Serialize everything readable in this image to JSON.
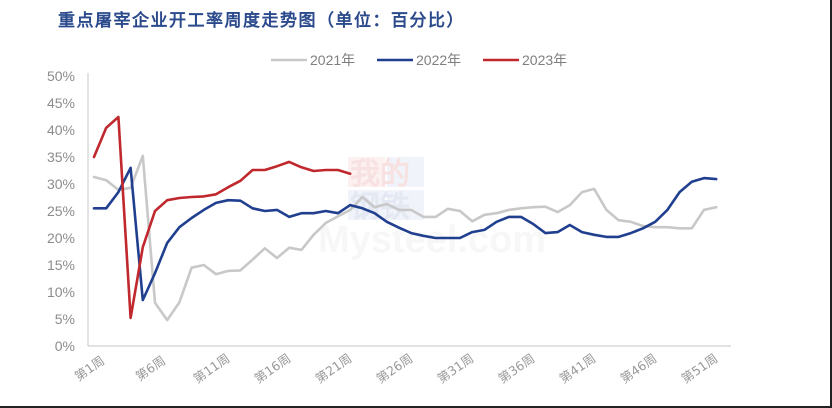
{
  "title": "重点屠宰企业开工率周度走势图（单位：百分比）",
  "watermark": {
    "line1a": "我的",
    "line1b": "钢铁",
    "line2": "Mysteel.com"
  },
  "colors": {
    "title": "#2b4a8c",
    "s2021": "#c8c8c8",
    "s2022": "#203f8f",
    "s2023": "#c0282d",
    "axis": "#d0d0d0",
    "tick_text": "#8c8c8c"
  },
  "legend": [
    {
      "label": "2021年",
      "color": "#c8c8c8"
    },
    {
      "label": "2022年",
      "color": "#203f8f"
    },
    {
      "label": "2023年",
      "color": "#c0282d"
    }
  ],
  "chart_data": {
    "type": "line",
    "title": "重点屠宰企业开工率周度走势图（单位：百分比）",
    "xlabel": "",
    "ylabel": "",
    "ylim": [
      0,
      50
    ],
    "yticks": [
      "0%",
      "5%",
      "10%",
      "15%",
      "20%",
      "25%",
      "30%",
      "35%",
      "40%",
      "45%",
      "50%"
    ],
    "xtick_labels": [
      "第1周",
      "第6周",
      "第11周",
      "第16周",
      "第21周",
      "第26周",
      "第31周",
      "第36周",
      "第41周",
      "第46周",
      "第51周"
    ],
    "x": [
      1,
      2,
      3,
      4,
      5,
      6,
      7,
      8,
      9,
      10,
      11,
      12,
      13,
      14,
      15,
      16,
      17,
      18,
      19,
      20,
      21,
      22,
      23,
      24,
      25,
      26,
      27,
      28,
      29,
      30,
      31,
      32,
      33,
      34,
      35,
      36,
      37,
      38,
      39,
      40,
      41,
      42,
      43,
      44,
      45,
      46,
      47,
      48,
      49,
      50,
      51,
      52
    ],
    "grid": false,
    "legend_position": "top",
    "series": [
      {
        "name": "2021年",
        "values": [
          31.3,
          30.7,
          28.9,
          29.3,
          35.2,
          8.0,
          4.8,
          8.1,
          14.5,
          15.0,
          13.3,
          13.9,
          14.0,
          16.0,
          18.1,
          16.3,
          18.2,
          17.8,
          20.6,
          22.8,
          24.0,
          25.2,
          27.6,
          25.7,
          26.3,
          25.2,
          25.2,
          23.9,
          23.9,
          25.4,
          25.0,
          23.1,
          24.3,
          24.6,
          25.2,
          25.5,
          25.7,
          25.8,
          24.8,
          26.1,
          28.5,
          29.1,
          25.2,
          23.3,
          23.0,
          22.2,
          22.0,
          22.0,
          21.8,
          21.8,
          25.2,
          25.7
        ]
      },
      {
        "name": "2022年",
        "values": [
          25.5,
          25.5,
          28.5,
          33.0,
          8.5,
          13.5,
          19.1,
          22.0,
          23.7,
          25.2,
          26.5,
          27.0,
          26.9,
          25.5,
          25.0,
          25.2,
          23.9,
          24.6,
          24.6,
          25.0,
          24.6,
          26.1,
          25.5,
          24.6,
          23.0,
          21.9,
          20.9,
          20.4,
          20.0,
          20.0,
          20.0,
          21.1,
          21.5,
          23.0,
          23.9,
          23.9,
          22.6,
          20.9,
          21.1,
          22.4,
          21.1,
          20.6,
          20.2,
          20.2,
          20.9,
          21.8,
          23.0,
          25.2,
          28.5,
          30.4,
          31.1,
          30.9
        ]
      },
      {
        "name": "2023年",
        "values": [
          35.0,
          40.4,
          42.4,
          5.2,
          18.3,
          25.0,
          27.0,
          27.4,
          27.6,
          27.7,
          28.1,
          29.4,
          30.6,
          32.6,
          32.6,
          33.3,
          34.1,
          33.1,
          32.4,
          32.6,
          32.6,
          31.9
        ]
      }
    ]
  }
}
